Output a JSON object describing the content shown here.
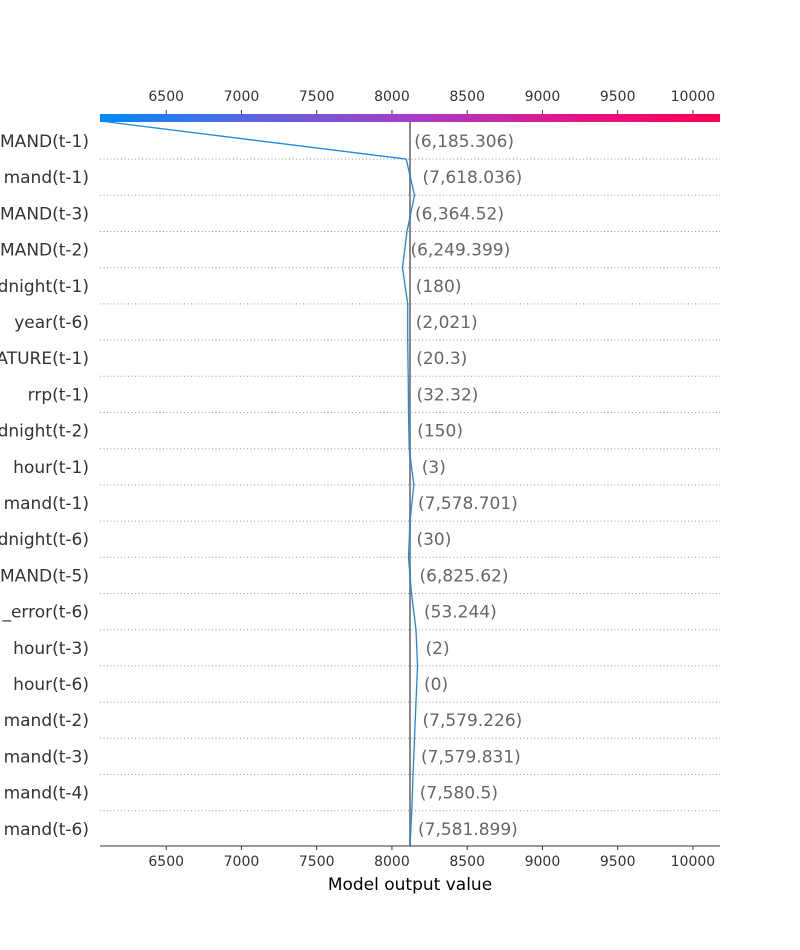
{
  "chart_data": {
    "type": "decision_plot",
    "xlabel": "Model output value",
    "x_ticks": [
      6500,
      7000,
      7500,
      8000,
      8500,
      9000,
      9500,
      10000
    ],
    "xlim": [
      6060,
      10180
    ],
    "base_value": 8120,
    "colormap": [
      "#008bfb",
      "#5b63e0",
      "#a63ec8",
      "#e0168c",
      "#ff0052"
    ],
    "line_color": "#1e88e5",
    "features": [
      {
        "name": "MAND(t-1)",
        "value_label": "(6,185.306)"
      },
      {
        "name": "mand(t-1)",
        "value_label": "(7,618.036)"
      },
      {
        "name": "MAND(t-3)",
        "value_label": "(6,364.52)"
      },
      {
        "name": "MAND(t-2)",
        "value_label": "(6,249.399)"
      },
      {
        "name": "dnight(t-1)",
        "value_label": "(180)"
      },
      {
        "name": "year(t-6)",
        "value_label": "(2,021)"
      },
      {
        "name": "ATURE(t-1)",
        "value_label": "(20.3)"
      },
      {
        "name": "rrp(t-1)",
        "value_label": "(32.32)"
      },
      {
        "name": "dnight(t-2)",
        "value_label": "(150)"
      },
      {
        "name": "hour(t-1)",
        "value_label": "(3)"
      },
      {
        "name": "mand(t-1)",
        "value_label": "(7,578.701)"
      },
      {
        "name": "dnight(t-6)",
        "value_label": "(30)"
      },
      {
        "name": "MAND(t-5)",
        "value_label": "(6,825.62)"
      },
      {
        "name": "_error(t-6)",
        "value_label": "(53.244)"
      },
      {
        "name": "hour(t-3)",
        "value_label": "(2)"
      },
      {
        "name": "hour(t-6)",
        "value_label": "(0)"
      },
      {
        "name": "mand(t-2)",
        "value_label": "(7,579.226)"
      },
      {
        "name": "mand(t-3)",
        "value_label": "(7,579.831)"
      },
      {
        "name": "mand(t-4)",
        "value_label": "(7,580.5)"
      },
      {
        "name": "mand(t-6)",
        "value_label": "(7,581.899)"
      }
    ],
    "path": [
      6060,
      8095,
      8150,
      8100,
      8070,
      8105,
      8105,
      8108,
      8110,
      8115,
      8145,
      8120,
      8110,
      8130,
      8160,
      8170,
      8160,
      8150,
      8140,
      8132,
      8120
    ]
  }
}
